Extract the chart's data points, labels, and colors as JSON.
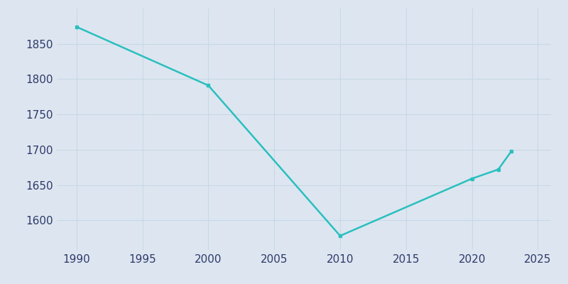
{
  "years": [
    1990,
    2000,
    2010,
    2020,
    2022,
    2023
  ],
  "population": [
    1874,
    1791,
    1578,
    1659,
    1672,
    1698
  ],
  "line_color": "#2abfbf",
  "background_color": "#dde6f0",
  "grid_color": "#c8d8e8",
  "text_color": "#2d3a6b",
  "xlim": [
    1988.5,
    2026
  ],
  "ylim": [
    1558,
    1900
  ],
  "xticks": [
    1990,
    1995,
    2000,
    2005,
    2010,
    2015,
    2020,
    2025
  ],
  "yticks": [
    1600,
    1650,
    1700,
    1750,
    1800,
    1850
  ],
  "line_width": 1.8,
  "marker": "s",
  "marker_size": 3
}
